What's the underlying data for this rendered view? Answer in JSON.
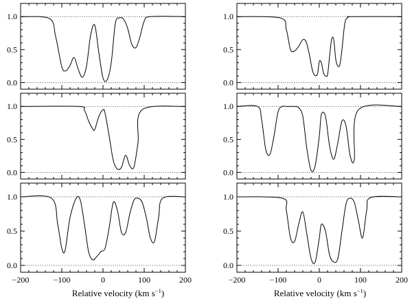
{
  "chart_data": [
    {
      "type": "line",
      "panel": "left-top",
      "xlim": [
        -200,
        200
      ],
      "ylim": [
        -0.1,
        1.2
      ],
      "yticks": [
        0.0,
        0.5,
        1.0
      ],
      "ytick_labels": [
        "0.0",
        "0.5",
        "1.0"
      ],
      "reference_lines": [
        0.0,
        1.0
      ],
      "x": [
        -200,
        -130,
        -115,
        -100,
        -90,
        -80,
        -70,
        -60,
        -50,
        -40,
        -30,
        -20,
        -10,
        0,
        10,
        20,
        30,
        40,
        50,
        60,
        70,
        80,
        90,
        100,
        115,
        200
      ],
      "y": [
        1.0,
        0.97,
        0.7,
        0.24,
        0.18,
        0.26,
        0.38,
        0.2,
        0.08,
        0.25,
        0.72,
        0.87,
        0.45,
        0.07,
        0.04,
        0.3,
        0.9,
        0.98,
        0.96,
        0.82,
        0.58,
        0.53,
        0.7,
        0.93,
        1.0,
        1.0
      ]
    },
    {
      "type": "line",
      "panel": "left-middle",
      "xlim": [
        -200,
        200
      ],
      "ylim": [
        -0.1,
        1.2
      ],
      "yticks": [
        0.0,
        0.5,
        1.0
      ],
      "ytick_labels": [
        "0.0",
        "0.5",
        "1.0"
      ],
      "reference_lines": [
        0.0,
        1.0
      ],
      "x": [
        -200,
        -60,
        -45,
        -35,
        -25,
        -20,
        -10,
        0,
        5,
        15,
        25,
        35,
        45,
        55,
        65,
        75,
        85,
        95,
        200
      ],
      "y": [
        1.0,
        1.0,
        0.94,
        0.78,
        0.66,
        0.65,
        0.85,
        0.95,
        0.9,
        0.55,
        0.18,
        0.05,
        0.08,
        0.26,
        0.1,
        0.08,
        0.45,
        0.95,
        1.0
      ]
    },
    {
      "type": "line",
      "panel": "left-bottom",
      "xlim": [
        -200,
        200
      ],
      "ylim": [
        -0.1,
        1.2
      ],
      "yticks": [
        0.0,
        0.5,
        1.0
      ],
      "ytick_labels": [
        "0.0",
        "0.5",
        "1.0"
      ],
      "reference_lines": [
        0.0,
        1.0
      ],
      "x": [
        -200,
        -125,
        -110,
        -100,
        -92,
        -80,
        -65,
        -55,
        -45,
        -35,
        -25,
        -15,
        -5,
        5,
        15,
        25,
        35,
        45,
        55,
        65,
        75,
        85,
        95,
        105,
        115,
        125,
        135,
        145,
        200
      ],
      "y": [
        1.0,
        0.98,
        0.6,
        0.25,
        0.22,
        0.7,
        0.98,
        0.95,
        0.6,
        0.2,
        0.08,
        0.13,
        0.2,
        0.25,
        0.55,
        0.92,
        0.8,
        0.48,
        0.48,
        0.75,
        0.95,
        0.98,
        0.92,
        0.7,
        0.4,
        0.35,
        0.7,
        0.98,
        1.0
      ]
    },
    {
      "type": "line",
      "panel": "right-top",
      "xlim": [
        -200,
        200
      ],
      "ylim": [
        -0.1,
        1.2
      ],
      "yticks": [
        0.0,
        0.5,
        1.0
      ],
      "ytick_labels": [
        "0.0",
        "0.5",
        "1.0"
      ],
      "reference_lines": [
        0.0,
        1.0
      ],
      "x": [
        -200,
        -95,
        -80,
        -70,
        -60,
        -50,
        -40,
        -32,
        -25,
        -15,
        -5,
        0,
        5,
        10,
        15,
        20,
        25,
        30,
        35,
        40,
        45,
        50,
        55,
        62,
        70,
        80,
        200
      ],
      "y": [
        1.0,
        0.98,
        0.8,
        0.5,
        0.48,
        0.55,
        0.65,
        0.62,
        0.45,
        0.15,
        0.12,
        0.32,
        0.3,
        0.15,
        0.1,
        0.12,
        0.4,
        0.66,
        0.65,
        0.35,
        0.25,
        0.27,
        0.5,
        0.9,
        0.99,
        1.0,
        1.0
      ]
    },
    {
      "type": "line",
      "panel": "right-middle",
      "xlim": [
        -200,
        200
      ],
      "ylim": [
        -0.1,
        1.2
      ],
      "yticks": [
        0.0,
        0.5,
        1.0
      ],
      "ytick_labels": [
        "0.0",
        "0.5",
        "1.0"
      ],
      "reference_lines": [
        0.0,
        1.0
      ],
      "x": [
        -200,
        -150,
        -140,
        -130,
        -120,
        -110,
        -100,
        -90,
        -80,
        -70,
        -60,
        -50,
        -40,
        -30,
        -20,
        -10,
        0,
        5,
        15,
        25,
        35,
        45,
        55,
        65,
        75,
        85,
        95,
        200
      ],
      "y": [
        1.0,
        1.0,
        0.8,
        0.35,
        0.27,
        0.55,
        0.92,
        1.0,
        1.0,
        1.0,
        1.0,
        0.98,
        0.85,
        0.35,
        0.03,
        0.1,
        0.55,
        0.88,
        0.85,
        0.4,
        0.2,
        0.45,
        0.78,
        0.7,
        0.25,
        0.2,
        0.95,
        1.0
      ]
    },
    {
      "type": "line",
      "panel": "right-bottom",
      "xlim": [
        -200,
        200
      ],
      "ylim": [
        -0.1,
        1.2
      ],
      "yticks": [
        0.0,
        0.5,
        1.0
      ],
      "ytick_labels": [
        "0.0",
        "0.5",
        "1.0"
      ],
      "reference_lines": [
        0.0,
        1.0
      ],
      "x": [
        -200,
        -90,
        -80,
        -70,
        -60,
        -50,
        -40,
        -30,
        -20,
        -10,
        0,
        5,
        15,
        25,
        35,
        45,
        55,
        65,
        75,
        85,
        95,
        105,
        115,
        125,
        200
      ],
      "y": [
        1.0,
        0.98,
        0.8,
        0.4,
        0.35,
        0.6,
        0.78,
        0.45,
        0.1,
        0.05,
        0.4,
        0.6,
        0.5,
        0.15,
        0.05,
        0.1,
        0.5,
        0.9,
        0.98,
        0.92,
        0.65,
        0.4,
        0.8,
        0.99,
        1.0
      ]
    }
  ],
  "axes": {
    "xticks": [
      -200,
      -100,
      0,
      100,
      200
    ],
    "xtick_labels": [
      "−200",
      "−100",
      "0",
      "100",
      "200"
    ],
    "xlabel": {
      "text": "Relative velocity (km s",
      "superscript": "−1",
      "close": ")"
    }
  }
}
